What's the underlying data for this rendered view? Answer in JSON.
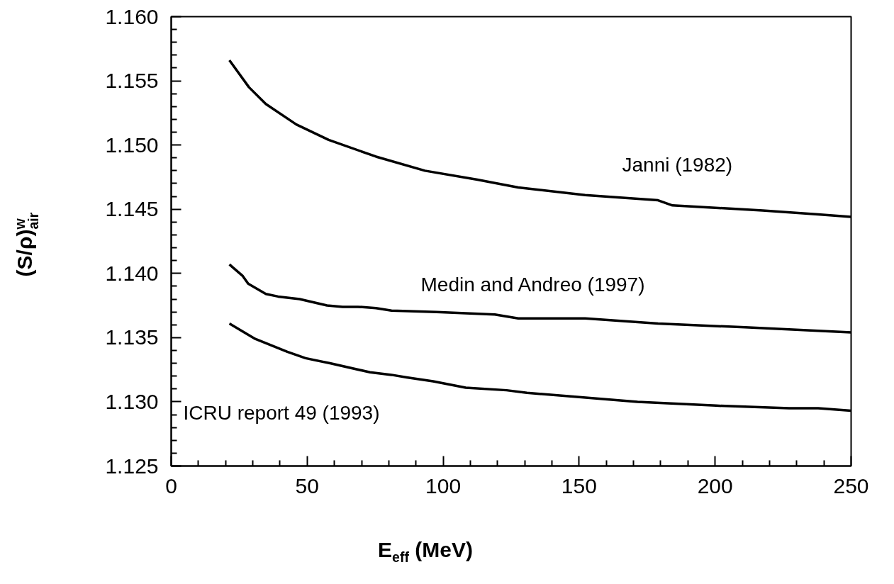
{
  "chart_data": {
    "type": "line",
    "xlabel": "E$_{eff}$ (MeV)",
    "ylabel": "(S/ρ)$^{w}$$_{air}$",
    "xlim": [
      0,
      250
    ],
    "ylim": [
      1.125,
      1.16
    ],
    "xticks": [
      0,
      50,
      100,
      150,
      200,
      250
    ],
    "yticks": [
      {
        "value": 1.125,
        "label": "1.125"
      },
      {
        "value": 1.13,
        "label": "1.130"
      },
      {
        "value": 1.135,
        "label": "1.135"
      },
      {
        "value": 1.14,
        "label": "1.140"
      },
      {
        "value": 1.145,
        "label": "1.145"
      },
      {
        "value": 1.15,
        "label": "1.150"
      },
      {
        "value": 1.155,
        "label": "1.155"
      },
      {
        "value": 1.16,
        "label": "1.160"
      }
    ],
    "grid": false,
    "marker": "none",
    "line_style": "solid",
    "series": [
      {
        "color": "#000000",
        "x": [
          21.4,
          28.6,
          34.8,
          46,
          57.9,
          75.3,
          93.3,
          112.6,
          127.6,
          152.2,
          179,
          184.3,
          217.5,
          237.9,
          250
        ],
        "values": [
          1.1566,
          1.1545,
          1.1532,
          1.1516,
          1.1504,
          1.1491,
          1.148,
          1.1473,
          1.1467,
          1.1461,
          1.1457,
          1.1453,
          1.1449,
          1.1446,
          1.1444
        ]
      },
      {
        "color": "#000000",
        "x": [
          21.4,
          26.3,
          28.3,
          34.8,
          39.3,
          47.2,
          57.3,
          63,
          68.6,
          75.3,
          81,
          97.6,
          119,
          127.6,
          152.2,
          179,
          211,
          250
        ],
        "values": [
          1.1407,
          1.1398,
          1.1392,
          1.1384,
          1.1382,
          1.138,
          1.1375,
          1.1374,
          1.1374,
          1.1373,
          1.1371,
          1.137,
          1.1368,
          1.1365,
          1.1365,
          1.1361,
          1.1358,
          1.1354
        ]
      },
      {
        "color": "#000000",
        "x": [
          21.4,
          30.9,
          42.7,
          49.4,
          58.4,
          73.1,
          81,
          86.6,
          96.3,
          108.3,
          123.3,
          130.8,
          171.5,
          200.4,
          227.2,
          237.9,
          250
        ],
        "values": [
          1.1361,
          1.1349,
          1.1339,
          1.1334,
          1.133,
          1.1323,
          1.1321,
          1.1319,
          1.1316,
          1.1311,
          1.1309,
          1.1307,
          1.13,
          1.1297,
          1.1295,
          1.1295,
          1.1293
        ]
      }
    ],
    "annotations": [
      "Janni (1982)",
      "Medin and Andreo (1997)",
      "ICRU report 49 (1993)"
    ]
  }
}
